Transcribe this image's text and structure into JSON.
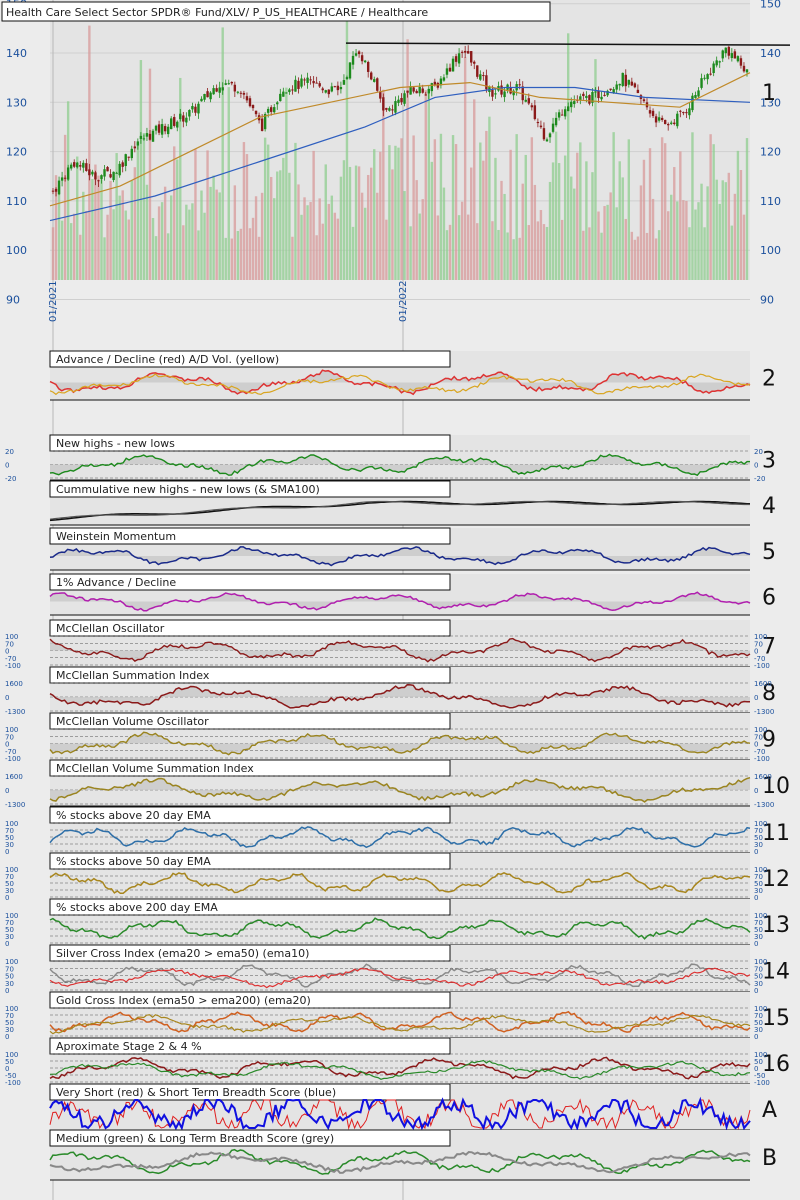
{
  "header": {
    "title": "Health Care Select Sector SPDR® Fund/XLV/ P_US_HEALTHCARE / Healthcare"
  },
  "colors": {
    "up": "#1d8a1d",
    "down": "#8b1a1a",
    "vol_up": "#8fce8f",
    "vol_down": "#d89a9a",
    "ma_short": "#c08a2a",
    "ma_long": "#2f5fbf",
    "axis": "#1a4f9c"
  },
  "chart_data": {
    "type": "line",
    "price_panel": {
      "type": "candlestick",
      "y_ticks_left": [
        "150",
        "140",
        "130",
        "120",
        "110",
        "100",
        "90"
      ],
      "y_ticks_right": [
        "150",
        "140",
        "130",
        "120",
        "110",
        "100",
        "90"
      ],
      "ylim": [
        90,
        150
      ],
      "x_labels": [
        "01/2021",
        "01/2022"
      ],
      "panel_number": "1",
      "close_path": [
        [
          0,
          112
        ],
        [
          0.03,
          118
        ],
        [
          0.06,
          115
        ],
        [
          0.09,
          116
        ],
        [
          0.12,
          122
        ],
        [
          0.16,
          125
        ],
        [
          0.2,
          128
        ],
        [
          0.24,
          134
        ],
        [
          0.27,
          133
        ],
        [
          0.3,
          125
        ],
        [
          0.33,
          133
        ],
        [
          0.37,
          134
        ],
        [
          0.41,
          132
        ],
        [
          0.44,
          141
        ],
        [
          0.48,
          128
        ],
        [
          0.51,
          132
        ],
        [
          0.55,
          133
        ],
        [
          0.59,
          141
        ],
        [
          0.63,
          132
        ],
        [
          0.67,
          133
        ],
        [
          0.71,
          123
        ],
        [
          0.74,
          130
        ],
        [
          0.78,
          131
        ],
        [
          0.82,
          135
        ],
        [
          0.85,
          130
        ],
        [
          0.88,
          125
        ],
        [
          0.91,
          128
        ],
        [
          0.94,
          135
        ],
        [
          0.97,
          141
        ],
        [
          1.0,
          136
        ]
      ],
      "ma_short_path": [
        [
          0,
          109
        ],
        [
          0.1,
          113
        ],
        [
          0.2,
          120
        ],
        [
          0.3,
          127
        ],
        [
          0.4,
          130
        ],
        [
          0.5,
          133
        ],
        [
          0.6,
          134
        ],
        [
          0.7,
          131
        ],
        [
          0.8,
          130
        ],
        [
          0.9,
          129
        ],
        [
          1.0,
          136
        ]
      ],
      "ma_long_path": [
        [
          0,
          106
        ],
        [
          0.15,
          111
        ],
        [
          0.3,
          118
        ],
        [
          0.45,
          125
        ],
        [
          0.55,
          131
        ],
        [
          0.65,
          133
        ],
        [
          0.75,
          133
        ],
        [
          0.85,
          131
        ],
        [
          1.0,
          130
        ]
      ],
      "resistance": 142
    },
    "panels": [
      {
        "title": "Advance / Decline (red) A/D Vol. (yellow)",
        "number": "2",
        "ticks": []
      },
      {
        "title": "New highs - new lows",
        "number": "3",
        "ticks": [
          "20",
          "0",
          "-20"
        ]
      },
      {
        "title": "Cummulative new highs - new lows (& SMA100)",
        "number": "4",
        "ticks": []
      },
      {
        "title": "Weinstein Momentum",
        "number": "5",
        "ticks": []
      },
      {
        "title": "1% Advance / Decline",
        "number": "6",
        "ticks": []
      },
      {
        "title": "McClellan Oscillator",
        "number": "7",
        "ticks": [
          "100",
          "70",
          "0",
          "-70",
          "-100"
        ]
      },
      {
        "title": "McClellan Summation Index",
        "number": "8",
        "ticks": [
          "1600",
          "0",
          "-1300"
        ]
      },
      {
        "title": "McClellan Volume Oscillator",
        "number": "9",
        "ticks": [
          "100",
          "70",
          "0",
          "-70",
          "-100"
        ]
      },
      {
        "title": "McClellan Volume Summation Index",
        "number": "10",
        "ticks": [
          "1600",
          "0",
          "-1300"
        ]
      },
      {
        "title": "% stocks above 20 day EMA",
        "number": "11",
        "ticks": [
          "100",
          "70",
          "50",
          "30",
          "0"
        ]
      },
      {
        "title": "% stocks above 50 day EMA",
        "number": "12",
        "ticks": [
          "100",
          "70",
          "50",
          "30",
          "0"
        ]
      },
      {
        "title": "% stocks above 200 day EMA",
        "number": "13",
        "ticks": [
          "100",
          "70",
          "50",
          "30",
          "0"
        ]
      },
      {
        "title": "Silver Cross Index (ema20 > ema50) (ema10)",
        "number": "14",
        "ticks": [
          "100",
          "70",
          "50",
          "30",
          "0"
        ]
      },
      {
        "title": "Gold Cross Index (ema50 > ema200) (ema20)",
        "number": "15",
        "ticks": [
          "100",
          "70",
          "50",
          "30",
          "0"
        ]
      },
      {
        "title": "Aproximate Stage 2 & 4 %",
        "number": "16",
        "ticks": [
          "100",
          "50",
          "0",
          "-50",
          "-100"
        ]
      },
      {
        "title": "Very Short (red) & Short Term Breadth Score (blue)",
        "number": "A",
        "ticks": []
      },
      {
        "title": "Medium (green) & Long Term Breadth Score (grey)",
        "number": "B",
        "ticks": []
      }
    ]
  }
}
